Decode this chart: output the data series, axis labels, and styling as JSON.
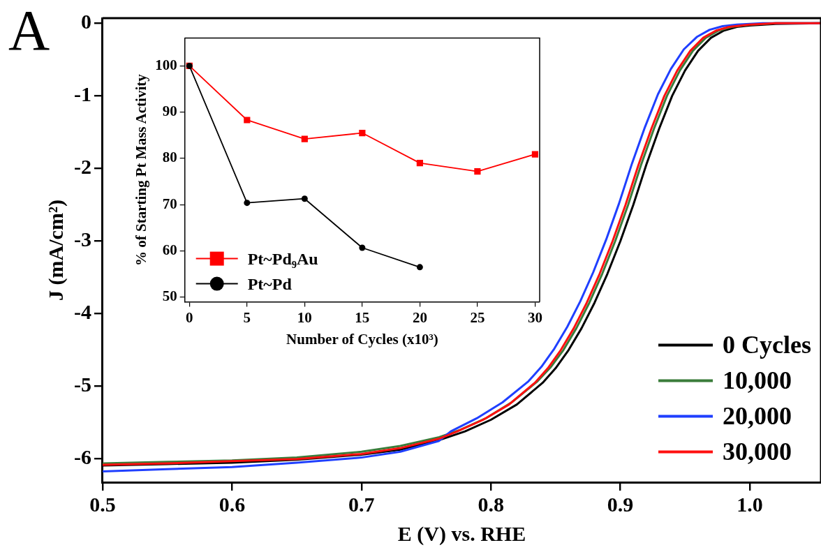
{
  "chart_data": [
    {
      "type": "line",
      "xlabel": "E (V) vs. RHE",
      "ylabel": "J (mA/cm²)",
      "annotations": [
        "A"
      ],
      "xlim": [
        0.5,
        1.055
      ],
      "xticks": [
        0.5,
        0.6,
        0.7,
        0.8,
        0.9,
        {
          "value": 1,
          "label": "1.0"
        }
      ],
      "ylim": [
        -6.32,
        0.07
      ],
      "yticks": [
        0,
        -1,
        -2,
        -3,
        -4,
        -5,
        -6
      ],
      "grid": false,
      "legend": "bottom right",
      "marker": "none",
      "line_style": "solid",
      "series": [
        {
          "name": "0 Cycles",
          "color": "#000000",
          "x": [
            0.5,
            0.55,
            0.6,
            0.65,
            0.7,
            0.73,
            0.76,
            0.78,
            0.8,
            0.82,
            0.84,
            0.85,
            0.86,
            0.87,
            0.88,
            0.89,
            0.9,
            0.91,
            0.92,
            0.93,
            0.94,
            0.95,
            0.96,
            0.97,
            0.98,
            0.99,
            1.0,
            1.02,
            1.055
          ],
          "values": [
            -6.09,
            -6.07,
            -6.05,
            -6.01,
            -5.94,
            -5.87,
            -5.74,
            -5.62,
            -5.46,
            -5.25,
            -4.95,
            -4.75,
            -4.5,
            -4.2,
            -3.85,
            -3.45,
            -3.0,
            -2.5,
            -1.95,
            -1.45,
            -1.0,
            -0.65,
            -0.38,
            -0.2,
            -0.1,
            -0.05,
            -0.03,
            -0.01,
            0.0
          ]
        },
        {
          "name": "10,000",
          "color": "#3a7d3a",
          "x": [
            0.5,
            0.55,
            0.6,
            0.65,
            0.7,
            0.73,
            0.76,
            0.776,
            0.796,
            0.816,
            0.836,
            0.846,
            0.856,
            0.866,
            0.876,
            0.886,
            0.896,
            0.906,
            0.916,
            0.926,
            0.936,
            0.946,
            0.956,
            0.966,
            0.976,
            0.986,
            1.0,
            1.02,
            1.055
          ],
          "values": [
            -6.06,
            -6.04,
            -6.02,
            -5.98,
            -5.9,
            -5.82,
            -5.7,
            -5.6,
            -5.44,
            -5.22,
            -4.93,
            -4.74,
            -4.5,
            -4.2,
            -3.85,
            -3.45,
            -3.0,
            -2.5,
            -1.95,
            -1.45,
            -1.0,
            -0.65,
            -0.38,
            -0.2,
            -0.1,
            -0.05,
            -0.02,
            0.0,
            0.0
          ]
        },
        {
          "name": "20,000",
          "color": "#1f3fff",
          "x": [
            0.5,
            0.55,
            0.6,
            0.65,
            0.7,
            0.73,
            0.76,
            0.769,
            0.789,
            0.809,
            0.829,
            0.839,
            0.849,
            0.859,
            0.869,
            0.879,
            0.889,
            0.899,
            0.909,
            0.919,
            0.929,
            0.939,
            0.949,
            0.959,
            0.969,
            0.979,
            0.99,
            1.01,
            1.055
          ],
          "values": [
            -6.17,
            -6.14,
            -6.11,
            -6.05,
            -5.98,
            -5.9,
            -5.75,
            -5.62,
            -5.44,
            -5.22,
            -4.93,
            -4.73,
            -4.48,
            -4.18,
            -3.83,
            -3.43,
            -2.98,
            -2.48,
            -1.93,
            -1.43,
            -0.98,
            -0.63,
            -0.36,
            -0.19,
            -0.09,
            -0.04,
            -0.02,
            0.0,
            0.0
          ]
        },
        {
          "name": "30,000",
          "color": "#ff1010",
          "x": [
            0.5,
            0.55,
            0.6,
            0.65,
            0.7,
            0.73,
            0.76,
            0.774,
            0.794,
            0.814,
            0.834,
            0.844,
            0.854,
            0.864,
            0.874,
            0.884,
            0.894,
            0.904,
            0.914,
            0.924,
            0.934,
            0.944,
            0.954,
            0.964,
            0.974,
            0.984,
            1.0,
            1.02,
            1.055
          ],
          "values": [
            -6.08,
            -6.06,
            -6.03,
            -6.0,
            -5.93,
            -5.85,
            -5.72,
            -5.62,
            -5.46,
            -5.25,
            -4.95,
            -4.75,
            -4.5,
            -4.2,
            -3.85,
            -3.45,
            -3.0,
            -2.5,
            -1.95,
            -1.45,
            -1.0,
            -0.65,
            -0.38,
            -0.2,
            -0.1,
            -0.05,
            -0.02,
            0.0,
            0.0
          ]
        }
      ]
    },
    {
      "type": "line",
      "xlabel": "Number of Cycles (x10³)",
      "ylabel": "% of Starting Pt Mass Activity",
      "xlim": [
        -0.4,
        30.4
      ],
      "xticks": [
        0,
        5,
        10,
        15,
        20,
        25,
        30
      ],
      "ylim": [
        49,
        106
      ],
      "yticks": [
        50,
        60,
        70,
        80,
        90,
        100
      ],
      "grid": false,
      "legend": "bottom left",
      "line_style": "solid",
      "series": [
        {
          "name": "Pt~Pd₉Au",
          "color": "#ff0000",
          "marker": "square",
          "x": [
            0,
            5,
            10,
            15,
            20,
            25,
            30
          ],
          "values": [
            100,
            88.3,
            84.2,
            85.5,
            79.0,
            77.2,
            80.9
          ]
        },
        {
          "name": "Pt~Pd",
          "color": "#000000",
          "marker": "circle",
          "x": [
            0,
            5,
            10,
            15,
            20
          ],
          "values": [
            100,
            70.4,
            71.3,
            60.7,
            56.5
          ]
        }
      ]
    }
  ]
}
